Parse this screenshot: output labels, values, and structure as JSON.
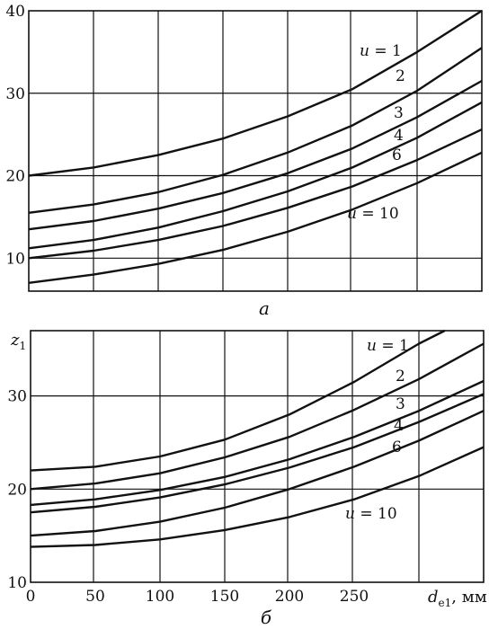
{
  "x_label": "d",
  "x_label_sub": "e1",
  "x_label_unit": ", мм",
  "chart_data": [
    {
      "type": "line",
      "panel_label": "a",
      "xlim": [
        0,
        350
      ],
      "ylim": [
        6,
        40
      ],
      "x_ticks": [],
      "y_ticks": [
        10,
        20,
        30,
        40
      ],
      "grid": true,
      "ylabel": "",
      "series": [
        {
          "name": "u = 1",
          "x": [
            0,
            50,
            100,
            150,
            200,
            250,
            300,
            350
          ],
          "y": [
            20,
            21,
            22.5,
            24.5,
            27.2,
            30.5,
            35,
            40
          ]
        },
        {
          "name": "2",
          "x": [
            0,
            50,
            100,
            150,
            200,
            250,
            300,
            350
          ],
          "y": [
            15.5,
            16.5,
            18,
            20.1,
            22.8,
            26.1,
            30.3,
            35.5
          ]
        },
        {
          "name": "3",
          "x": [
            0,
            50,
            100,
            150,
            200,
            250,
            300,
            350
          ],
          "y": [
            13.5,
            14.5,
            16,
            17.9,
            20.3,
            23.3,
            27.1,
            31.5
          ]
        },
        {
          "name": "4",
          "x": [
            0,
            50,
            100,
            150,
            200,
            250,
            300,
            350
          ],
          "y": [
            11.2,
            12.2,
            13.7,
            15.7,
            18.1,
            21,
            24.6,
            28.9
          ]
        },
        {
          "name": "6",
          "x": [
            0,
            50,
            100,
            150,
            200,
            250,
            300,
            350
          ],
          "y": [
            10,
            10.9,
            12.2,
            13.9,
            16.1,
            18.7,
            21.9,
            25.6
          ]
        },
        {
          "name": "u = 10",
          "x": [
            0,
            50,
            100,
            150,
            200,
            250,
            300,
            350
          ],
          "y": [
            7,
            8,
            9.3,
            11,
            13.2,
            15.9,
            19.1,
            22.8
          ]
        }
      ]
    },
    {
      "type": "line",
      "panel_label": "б",
      "xlim": [
        0,
        350
      ],
      "ylim": [
        10,
        37
      ],
      "x_ticks": [
        0,
        50,
        100,
        150,
        200,
        250
      ],
      "y_ticks": [
        10,
        20,
        30
      ],
      "grid": true,
      "ylabel": "z",
      "ylabel_sub": "1",
      "series": [
        {
          "name": "u = 1",
          "x": [
            0,
            50,
            100,
            150,
            200,
            250,
            300,
            320
          ],
          "y": [
            22,
            22.4,
            23.5,
            25.3,
            28,
            31.5,
            35.6,
            37
          ]
        },
        {
          "name": "2",
          "x": [
            0,
            50,
            100,
            150,
            200,
            250,
            300,
            350
          ],
          "y": [
            20,
            20.6,
            21.7,
            23.4,
            25.6,
            28.5,
            31.8,
            35.6
          ]
        },
        {
          "name": "3",
          "x": [
            0,
            50,
            100,
            150,
            200,
            250,
            300,
            350
          ],
          "y": [
            18.3,
            18.9,
            19.9,
            21.3,
            23.2,
            25.6,
            28.4,
            31.6
          ]
        },
        {
          "name": "4",
          "x": [
            0,
            50,
            100,
            150,
            200,
            250,
            300,
            350
          ],
          "y": [
            17.5,
            18.1,
            19.1,
            20.5,
            22.3,
            24.5,
            27.2,
            30.2
          ]
        },
        {
          "name": "6",
          "x": [
            0,
            50,
            100,
            150,
            200,
            250,
            300,
            350
          ],
          "y": [
            15,
            15.5,
            16.5,
            18,
            20,
            22.4,
            25.2,
            28.4
          ]
        },
        {
          "name": "u = 10",
          "x": [
            0,
            50,
            100,
            150,
            200,
            250,
            300,
            350
          ],
          "y": [
            13.8,
            14,
            14.6,
            15.6,
            17,
            18.9,
            21.4,
            24.5
          ]
        }
      ]
    }
  ]
}
